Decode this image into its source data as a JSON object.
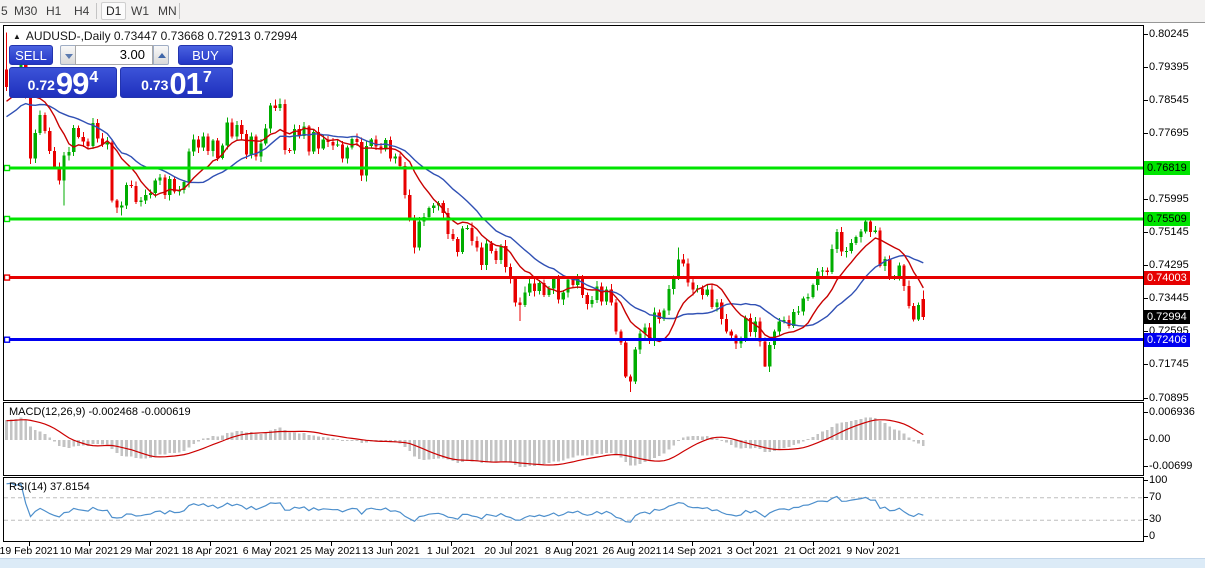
{
  "toolbar": {
    "timeframes": [
      {
        "label": "5",
        "active": false
      },
      {
        "label": "M30",
        "active": false
      },
      {
        "label": "H1",
        "active": false
      },
      {
        "label": "H4",
        "active": false
      },
      {
        "label": "D1",
        "active": true
      },
      {
        "label": "W1",
        "active": false
      },
      {
        "label": "MN",
        "active": false
      }
    ]
  },
  "header": {
    "marker": "▲",
    "text": "AUDUSD-,Daily  0.73447 0.73668 0.72913 0.72994"
  },
  "trade_panel": {
    "sell_label": "SELL",
    "buy_label": "BUY",
    "volume": "3.00",
    "sell_price": {
      "prefix": "0.72",
      "big": "99",
      "sup": "4"
    },
    "buy_price": {
      "prefix": "0.73",
      "big": "01",
      "sup": "7"
    }
  },
  "indicators": {
    "macd_label": "MACD(12,26,9) -0.002468 -0.000619",
    "rsi_label": "RSI(14) 37.8154"
  },
  "colors": {
    "candle_up": "#00AD00",
    "candle_down": "#E80000",
    "ma_fast": "#C80000",
    "ma_slow": "#3050B4",
    "level_green": "#00E400",
    "level_red": "#E60000",
    "level_blue": "#0000F0",
    "current_price_bg": "#000000",
    "macd_bars": "#C3C3C3",
    "macd_signal": "#CC0000",
    "rsi_line": "#4D8FCC",
    "panel_blue": "#2A41D0"
  },
  "chart_data": {
    "type": "candlestick",
    "symbol": "AUDUSD-",
    "timeframe": "Daily",
    "current_ohlc": {
      "open": 0.73447,
      "high": 0.73668,
      "low": 0.72913,
      "close": 0.72994
    },
    "bid": "0.72994",
    "ask": "0.73017",
    "first_open": 0.7935,
    "closes": [
      0.789,
      0.7915,
      0.791,
      0.7969,
      0.787,
      0.7706,
      0.7772,
      0.7818,
      0.7777,
      0.7726,
      0.7685,
      0.765,
      0.7714,
      0.7723,
      0.7785,
      0.7762,
      0.775,
      0.7738,
      0.7798,
      0.7758,
      0.7742,
      0.7748,
      0.7598,
      0.758,
      0.7586,
      0.7638,
      0.7636,
      0.7594,
      0.7598,
      0.7612,
      0.7618,
      0.765,
      0.7658,
      0.7612,
      0.7654,
      0.7622,
      0.7625,
      0.7646,
      0.7724,
      0.7755,
      0.7734,
      0.7763,
      0.7725,
      0.7752,
      0.7708,
      0.774,
      0.7799,
      0.7763,
      0.7792,
      0.7769,
      0.7716,
      0.7763,
      0.7712,
      0.7745,
      0.7783,
      0.7843,
      0.7836,
      0.7846,
      0.7728,
      0.7727,
      0.7782,
      0.7764,
      0.7788,
      0.7724,
      0.7774,
      0.7732,
      0.7755,
      0.7749,
      0.774,
      0.7742,
      0.7706,
      0.7734,
      0.7756,
      0.7749,
      0.7662,
      0.7738,
      0.7755,
      0.7737,
      0.7729,
      0.7754,
      0.7706,
      0.7711,
      0.7687,
      0.7612,
      0.7552,
      0.7478,
      0.7544,
      0.7556,
      0.7579,
      0.7586,
      0.7592,
      0.7566,
      0.7512,
      0.7499,
      0.7466,
      0.7527,
      0.7528,
      0.7494,
      0.7478,
      0.7432,
      0.7488,
      0.7469,
      0.7446,
      0.7482,
      0.7427,
      0.7399,
      0.7336,
      0.733,
      0.7362,
      0.7385,
      0.7366,
      0.7386,
      0.7355,
      0.7372,
      0.7397,
      0.7344,
      0.7362,
      0.7395,
      0.7381,
      0.7401,
      0.7356,
      0.7332,
      0.7343,
      0.7377,
      0.7339,
      0.737,
      0.7336,
      0.7262,
      0.7233,
      0.7146,
      0.7133,
      0.7216,
      0.7256,
      0.7272,
      0.7238,
      0.7311,
      0.7294,
      0.7316,
      0.7371,
      0.74,
      0.7447,
      0.7437,
      0.7387,
      0.7369,
      0.7372,
      0.7356,
      0.737,
      0.7325,
      0.7336,
      0.7294,
      0.7262,
      0.7251,
      0.7231,
      0.7242,
      0.7296,
      0.7261,
      0.7288,
      0.7236,
      0.7172,
      0.7227,
      0.7262,
      0.7288,
      0.7291,
      0.7276,
      0.7312,
      0.7313,
      0.7346,
      0.7351,
      0.7381,
      0.7416,
      0.7419,
      0.7414,
      0.7474,
      0.7517,
      0.7467,
      0.7468,
      0.7489,
      0.7504,
      0.7519,
      0.7544,
      0.7518,
      0.7521,
      0.743,
      0.7448,
      0.7398,
      0.7402,
      0.7431,
      0.7379,
      0.7327,
      0.7293,
      0.733,
      0.72994
    ],
    "extremes": {
      "0": {
        "h": 0.803
      },
      "4": {
        "h": 0.7998
      },
      "5": {
        "l": 0.7692
      },
      "12": {
        "l": 0.7585
      },
      "24": {
        "l": 0.756
      },
      "85": {
        "l": 0.7462
      },
      "107": {
        "l": 0.7289
      },
      "130": {
        "l": 0.7106
      },
      "140": {
        "h": 0.7478
      },
      "158": {
        "l": 0.717
      },
      "179": {
        "h": 0.7555
      }
    },
    "last_candle": {
      "o": 0.73447,
      "h": 0.73668,
      "l": 0.72913,
      "c": 0.72994
    },
    "overlays": [
      {
        "type": "sma",
        "period": 10,
        "color": "#C80000"
      },
      {
        "type": "sma",
        "period": 20,
        "color": "#3050B4"
      }
    ],
    "hlines": [
      {
        "value": 0.76819,
        "label": "0.76819",
        "color": "#00E400",
        "text_color": "#000000"
      },
      {
        "value": 0.75509,
        "label": "0.75509",
        "color": "#00E400",
        "text_color": "#000000"
      },
      {
        "value": 0.74003,
        "label": "0.74003",
        "color": "#E60000",
        "text_color": "#FFFFFF"
      },
      {
        "value": 0.72406,
        "label": "0.72406",
        "color": "#0000F0",
        "text_color": "#FFFFFF"
      }
    ],
    "current_price_label": {
      "value": 0.72994,
      "text": "0.72994",
      "bg": "#000000",
      "fg": "#FFFFFF"
    },
    "price_axis_ticks": [
      "0.80245",
      "0.79395",
      "0.78545",
      "0.77695",
      "0.75995",
      "0.75145",
      "0.74295",
      "0.73445",
      "0.72595",
      "0.71745",
      "0.70895"
    ],
    "macd": {
      "params": "12,26,9",
      "values_label": "-0.002468 -0.000619",
      "axis": [
        {
          "text": "0.006936",
          "value": 0.006936
        },
        {
          "text": "0.00",
          "value": 0
        },
        {
          "text": "-0.00699",
          "value": -0.00699
        }
      ]
    },
    "rsi": {
      "period": 14,
      "value": 37.8154,
      "levels": [
        70,
        30
      ],
      "axis": [
        {
          "text": "100",
          "value": 100
        },
        {
          "text": "70",
          "value": 70
        },
        {
          "text": "30",
          "value": 30
        },
        {
          "text": "0",
          "value": 0
        }
      ]
    },
    "x_labels": [
      "19 Feb 2021",
      "10 Mar 2021",
      "29 Mar 2021",
      "18 Apr 2021",
      "6 May 2021",
      "25 May 2021",
      "13 Jun 2021",
      "1 Jul 2021",
      "20 Jul 2021",
      "8 Aug 2021",
      "26 Aug 2021",
      "14 Sep 2021",
      "3 Oct 2021",
      "21 Oct 2021",
      "9 Nov 2021"
    ],
    "warmup": {
      "start": 0.757,
      "step": 0.0008,
      "wiggle": 0.0009,
      "n": 40
    }
  }
}
